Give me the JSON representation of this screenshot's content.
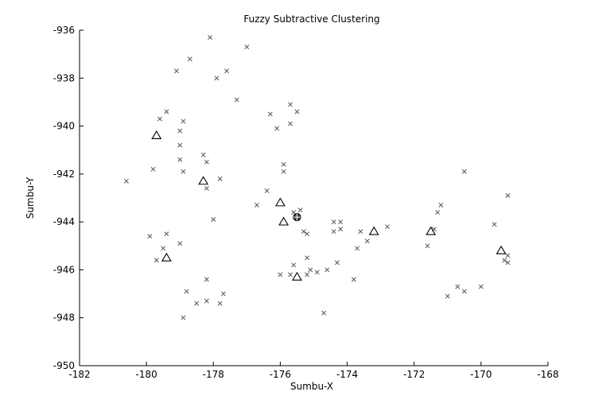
{
  "chart_data": {
    "type": "scatter",
    "title": "Fuzzy Subtractive Clustering",
    "xlabel": "Sumbu-X",
    "ylabel": "Sumbu-Y",
    "xlim": [
      -182,
      -168
    ],
    "ylim": [
      -950,
      -936
    ],
    "xticks": [
      -182,
      -180,
      -178,
      -176,
      -174,
      -172,
      -170,
      -168
    ],
    "yticks": [
      -936,
      -938,
      -940,
      -942,
      -944,
      -946,
      -948,
      -950
    ],
    "grid": false,
    "series": [
      {
        "marker": "x",
        "color": "#555555",
        "points": [
          [
            -178.1,
            -936.3
          ],
          [
            -177.0,
            -936.7
          ],
          [
            -178.7,
            -937.2
          ],
          [
            -179.1,
            -937.7
          ],
          [
            -177.6,
            -937.7
          ],
          [
            -177.9,
            -938.0
          ],
          [
            -177.3,
            -938.9
          ],
          [
            -179.4,
            -939.4
          ],
          [
            -179.6,
            -939.7
          ],
          [
            -178.9,
            -939.8
          ],
          [
            -179.0,
            -940.2
          ],
          [
            -179.0,
            -940.8
          ],
          [
            -179.0,
            -941.4
          ],
          [
            -178.3,
            -941.2
          ],
          [
            -178.2,
            -941.5
          ],
          [
            -178.9,
            -941.9
          ],
          [
            -179.8,
            -941.8
          ],
          [
            -180.6,
            -942.3
          ],
          [
            -177.8,
            -942.2
          ],
          [
            -178.2,
            -942.6
          ],
          [
            -176.3,
            -939.5
          ],
          [
            -176.1,
            -940.1
          ],
          [
            -175.7,
            -939.9
          ],
          [
            -175.7,
            -939.1
          ],
          [
            -175.5,
            -939.4
          ],
          [
            -175.9,
            -941.6
          ],
          [
            -175.9,
            -941.9
          ],
          [
            -176.4,
            -942.7
          ],
          [
            -176.7,
            -943.3
          ],
          [
            -178.0,
            -943.9
          ],
          [
            -175.6,
            -943.6
          ],
          [
            -175.4,
            -943.5
          ],
          [
            -175.3,
            -944.4
          ],
          [
            -175.2,
            -944.5
          ],
          [
            -174.4,
            -944.4
          ],
          [
            -174.4,
            -944.0
          ],
          [
            -174.2,
            -944.0
          ],
          [
            -174.2,
            -944.3
          ],
          [
            -173.6,
            -944.4
          ],
          [
            -173.4,
            -944.8
          ],
          [
            -172.8,
            -944.2
          ],
          [
            -173.7,
            -945.1
          ],
          [
            -171.4,
            -944.3
          ],
          [
            -171.3,
            -943.6
          ],
          [
            -171.2,
            -943.3
          ],
          [
            -171.6,
            -945.0
          ],
          [
            -170.5,
            -941.9
          ],
          [
            -169.2,
            -942.9
          ],
          [
            -169.6,
            -944.1
          ],
          [
            -169.3,
            -945.6
          ],
          [
            -169.2,
            -945.7
          ],
          [
            -169.2,
            -945.4
          ],
          [
            -179.9,
            -944.6
          ],
          [
            -179.4,
            -944.5
          ],
          [
            -179.5,
            -945.1
          ],
          [
            -179.0,
            -944.9
          ],
          [
            -179.7,
            -945.6
          ],
          [
            -178.2,
            -946.4
          ],
          [
            -178.8,
            -946.9
          ],
          [
            -177.7,
            -947.0
          ],
          [
            -178.2,
            -947.3
          ],
          [
            -178.5,
            -947.4
          ],
          [
            -177.8,
            -947.4
          ],
          [
            -178.9,
            -948.0
          ],
          [
            -175.2,
            -945.5
          ],
          [
            -175.6,
            -945.8
          ],
          [
            -175.7,
            -946.2
          ],
          [
            -175.1,
            -946.0
          ],
          [
            -174.9,
            -946.1
          ],
          [
            -174.6,
            -946.0
          ],
          [
            -175.2,
            -946.2
          ],
          [
            -176.0,
            -946.2
          ],
          [
            -174.3,
            -945.7
          ],
          [
            -173.8,
            -946.4
          ],
          [
            -174.7,
            -947.8
          ],
          [
            -171.0,
            -947.1
          ],
          [
            -170.7,
            -946.7
          ],
          [
            -170.5,
            -946.9
          ],
          [
            -170.0,
            -946.7
          ]
        ]
      },
      {
        "marker": "triangle",
        "color": "#000000",
        "points": [
          [
            -179.7,
            -940.4
          ],
          [
            -178.3,
            -942.3
          ],
          [
            -176.0,
            -943.2
          ],
          [
            -175.9,
            -944.0
          ],
          [
            -173.2,
            -944.4
          ],
          [
            -171.5,
            -944.4
          ],
          [
            -169.4,
            -945.2
          ],
          [
            -179.4,
            -945.5
          ],
          [
            -175.5,
            -946.3
          ]
        ]
      },
      {
        "marker": "circle-cross",
        "color": "#000000",
        "points": [
          [
            -175.5,
            -943.8
          ]
        ]
      }
    ]
  }
}
